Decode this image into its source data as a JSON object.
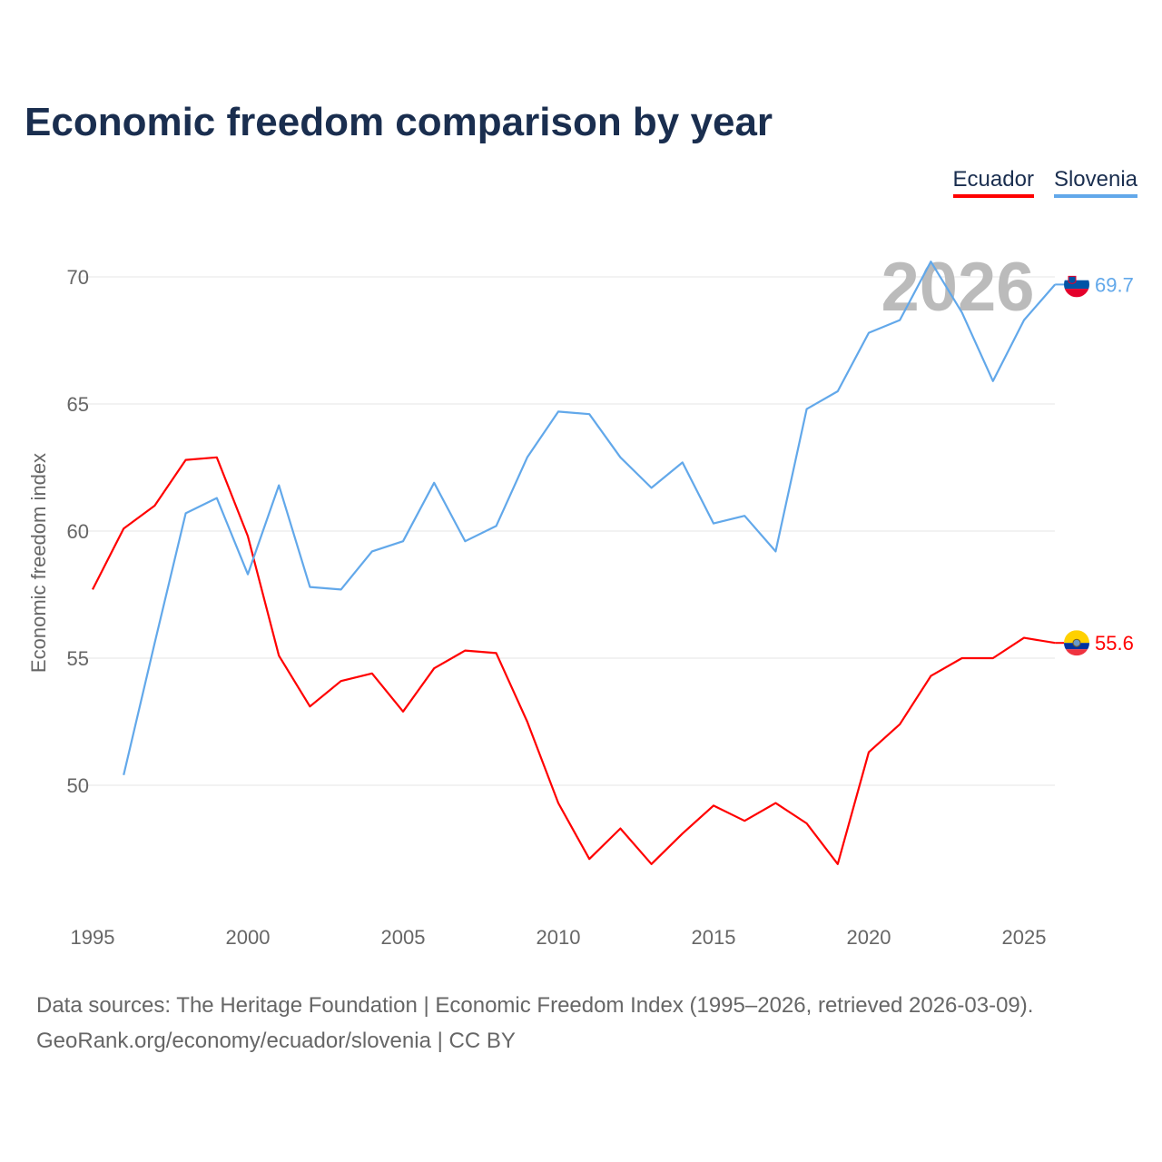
{
  "title": "Economic freedom comparison by year",
  "legend": [
    {
      "name": "Ecuador",
      "color": "#ff0000"
    },
    {
      "name": "Slovenia",
      "color": "#62a8ea"
    }
  ],
  "watermark_year": "2026",
  "source_line1": "Data sources: The Heritage Foundation | Economic Freedom Index (1995–2026, retrieved 2026-03-09).",
  "source_line2": "GeoRank.org/economy/ecuador/slovenia | CC BY",
  "chart_data": {
    "type": "line",
    "title": "Economic freedom comparison by year",
    "xlabel": "",
    "ylabel": "Economic freedom index",
    "xlim": [
      1995,
      2026
    ],
    "ylim": [
      44.8,
      72.2
    ],
    "xticks": [
      1995,
      2000,
      2005,
      2010,
      2015,
      2020,
      2025
    ],
    "yticks": [
      50,
      55,
      60,
      65,
      70
    ],
    "grid": true,
    "legend_position": "top-right",
    "series": [
      {
        "name": "Ecuador",
        "color": "#ff0000",
        "end_label": "55.6",
        "x": [
          1995,
          1996,
          1997,
          1998,
          1999,
          2000,
          2001,
          2002,
          2003,
          2004,
          2005,
          2006,
          2007,
          2008,
          2009,
          2010,
          2011,
          2012,
          2013,
          2014,
          2015,
          2016,
          2017,
          2018,
          2019,
          2020,
          2021,
          2022,
          2023,
          2024,
          2025,
          2026
        ],
        "values": [
          57.7,
          60.1,
          61.0,
          62.8,
          62.9,
          59.8,
          55.1,
          53.1,
          54.1,
          54.4,
          52.9,
          54.6,
          55.3,
          55.2,
          52.5,
          49.3,
          47.1,
          48.3,
          46.9,
          48.1,
          49.2,
          48.6,
          49.3,
          48.5,
          46.9,
          51.3,
          52.4,
          54.3,
          55.0,
          55.0,
          55.8,
          55.6
        ]
      },
      {
        "name": "Slovenia",
        "color": "#62a8ea",
        "end_label": "69.7",
        "x": [
          1996,
          1997,
          1998,
          1999,
          2000,
          2001,
          2002,
          2003,
          2004,
          2005,
          2006,
          2007,
          2008,
          2009,
          2010,
          2011,
          2012,
          2013,
          2014,
          2015,
          2016,
          2017,
          2018,
          2019,
          2020,
          2021,
          2022,
          2023,
          2024,
          2025,
          2026
        ],
        "values": [
          50.4,
          55.6,
          60.7,
          61.3,
          58.3,
          61.8,
          57.8,
          57.7,
          59.2,
          59.6,
          61.9,
          59.6,
          60.2,
          62.9,
          64.7,
          64.6,
          62.9,
          61.7,
          62.7,
          60.3,
          60.6,
          59.2,
          64.8,
          65.5,
          67.8,
          68.3,
          70.6,
          68.6,
          65.9,
          68.3,
          69.7
        ]
      }
    ]
  }
}
